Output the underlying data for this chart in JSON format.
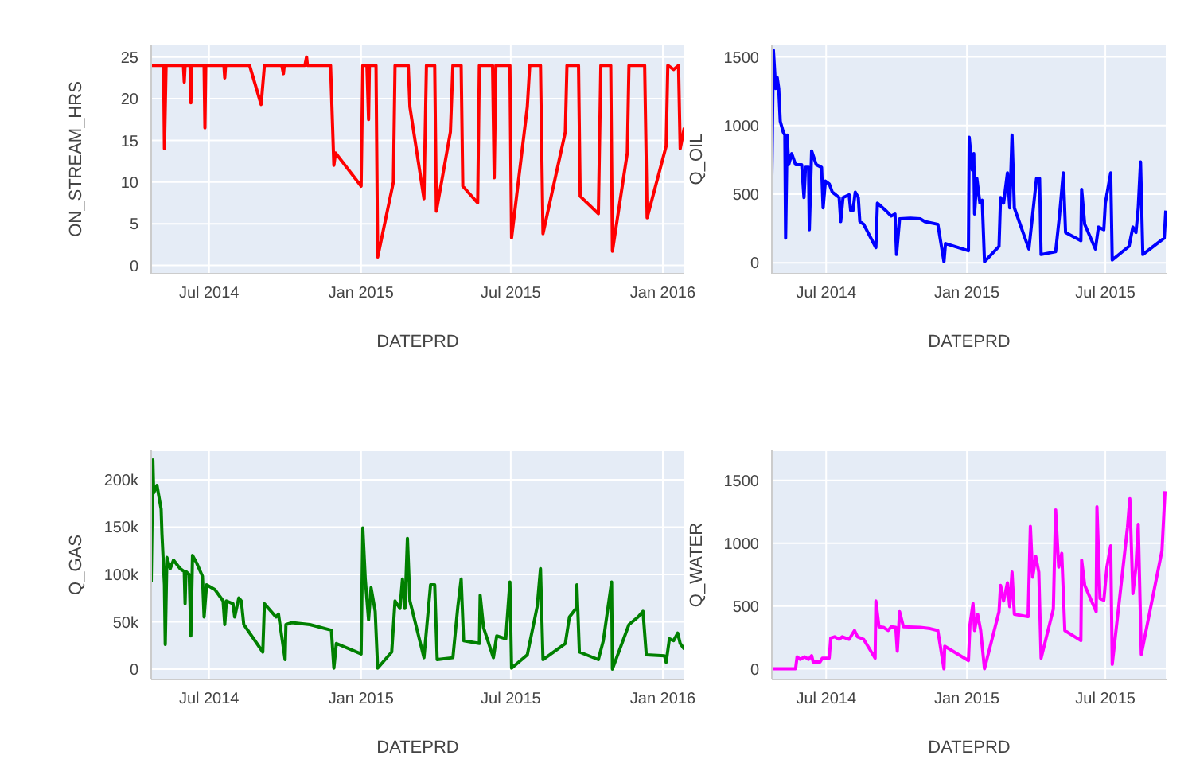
{
  "chart_data": [
    {
      "type": "line",
      "xlabel": "DATEPRD",
      "ylabel": "ON_STREAM_HRS",
      "color": "#ff0000",
      "grid": true,
      "xlim": [
        "2014-04-22",
        "2016-01-27"
      ],
      "xticks": [
        {
          "value": "2014-07-01",
          "label": "Jul 2014"
        },
        {
          "value": "2015-01-01",
          "label": "Jan 2015"
        },
        {
          "value": "2015-07-01",
          "label": "Jul 2015"
        },
        {
          "value": "2016-01-01",
          "label": "Jan 2016"
        }
      ],
      "ylim": [
        -1,
        26.5
      ],
      "yticks": [
        0,
        5,
        10,
        15,
        20,
        25
      ],
      "x": [
        "2014-04-22",
        "2014-05-07",
        "2014-05-08",
        "2014-05-10",
        "2014-05-31",
        "2014-06-01",
        "2014-06-02",
        "2014-06-08",
        "2014-06-09",
        "2014-06-10",
        "2014-06-25",
        "2014-06-26",
        "2014-06-27",
        "2014-07-19",
        "2014-07-20",
        "2014-07-21",
        "2014-08-19",
        "2014-09-02",
        "2014-09-06",
        "2014-09-27",
        "2014-09-29",
        "2014-09-30",
        "2014-10-25",
        "2014-10-27",
        "2014-10-28",
        "2014-11-25",
        "2014-11-29",
        "2014-12-01",
        "2015-01-01",
        "2015-01-03",
        "2015-01-08",
        "2015-01-10",
        "2015-01-11",
        "2015-01-19",
        "2015-01-21",
        "2015-02-09",
        "2015-02-11",
        "2015-02-27",
        "2015-03-01",
        "2015-03-18",
        "2015-03-21",
        "2015-03-31",
        "2015-04-02",
        "2015-04-19",
        "2015-04-22",
        "2015-05-02",
        "2015-05-04",
        "2015-05-22",
        "2015-05-24",
        "2015-06-09",
        "2015-06-11",
        "2015-06-13",
        "2015-06-30",
        "2015-07-02",
        "2015-07-21",
        "2015-07-24",
        "2015-08-06",
        "2015-08-09",
        "2015-09-05",
        "2015-09-07",
        "2015-09-21",
        "2015-09-23",
        "2015-10-15",
        "2015-10-18",
        "2015-10-30",
        "2015-11-01",
        "2015-11-19",
        "2015-11-21",
        "2015-12-10",
        "2015-12-13",
        "2016-01-05",
        "2016-01-07",
        "2016-01-14",
        "2016-01-20",
        "2016-01-22",
        "2016-01-27"
      ],
      "values": [
        24,
        24,
        14,
        24,
        24,
        22,
        24,
        24,
        19.5,
        24,
        24,
        16.5,
        24,
        24,
        22.5,
        24,
        24,
        19.3,
        24,
        24,
        23,
        24,
        24,
        25,
        24,
        24,
        12,
        13.5,
        9.5,
        24,
        24,
        17.5,
        24,
        24,
        1,
        10,
        24,
        24,
        19,
        8,
        24,
        24,
        6.5,
        16,
        24,
        24,
        9.5,
        7.5,
        24,
        24,
        10.5,
        24,
        24,
        3.3,
        19,
        24,
        24,
        3.8,
        16,
        24,
        24,
        8.3,
        6.2,
        24,
        24,
        1.7,
        13.5,
        24,
        24,
        5.7,
        14.3,
        24,
        23.5,
        24,
        14,
        16.5
      ]
    },
    {
      "type": "line",
      "xlabel": "DATEPRD",
      "ylabel": "Q_OIL",
      "color": "#0000ff",
      "grid": true,
      "xlim": [
        "2014-04-21",
        "2015-09-19"
      ],
      "xticks": [
        {
          "value": "2014-07-01",
          "label": "Jul 2014"
        },
        {
          "value": "2015-01-01",
          "label": "Jan 2015"
        },
        {
          "value": "2015-07-01",
          "label": "Jul 2015"
        }
      ],
      "ylim": [
        -80,
        1590
      ],
      "yticks": [
        0,
        500,
        1000,
        1500
      ],
      "x": [
        "2014-04-21",
        "2014-04-23",
        "2014-04-26",
        "2014-04-28",
        "2014-04-30",
        "2014-05-02",
        "2014-05-06",
        "2014-05-08",
        "2014-05-09",
        "2014-05-11",
        "2014-05-13",
        "2014-05-17",
        "2014-05-22",
        "2014-05-30",
        "2014-06-02",
        "2014-06-04",
        "2014-06-08",
        "2014-06-09",
        "2014-06-12",
        "2014-06-18",
        "2014-06-25",
        "2014-06-27",
        "2014-06-30",
        "2014-07-05",
        "2014-07-09",
        "2014-07-18",
        "2014-07-20",
        "2014-07-23",
        "2014-07-31",
        "2014-08-02",
        "2014-08-05",
        "2014-08-08",
        "2014-08-12",
        "2014-08-14",
        "2014-08-19",
        "2014-09-04",
        "2014-09-06",
        "2014-09-17",
        "2014-09-24",
        "2014-09-29",
        "2014-10-01",
        "2014-10-05",
        "2014-10-19",
        "2014-11-01",
        "2014-11-07",
        "2014-11-24",
        "2014-12-02",
        "2014-12-04",
        "2015-01-03",
        "2015-01-04",
        "2015-01-08",
        "2015-01-10",
        "2015-01-11",
        "2015-01-14",
        "2015-01-18",
        "2015-01-21",
        "2015-01-24",
        "2015-02-12",
        "2015-02-14",
        "2015-02-18",
        "2015-02-23",
        "2015-02-26",
        "2015-03-01",
        "2015-03-04",
        "2015-03-23",
        "2015-03-28",
        "2015-04-02",
        "2015-04-06",
        "2015-04-08",
        "2015-04-27",
        "2015-05-02",
        "2015-05-07",
        "2015-05-10",
        "2015-05-30",
        "2015-05-31",
        "2015-06-04",
        "2015-06-18",
        "2015-06-22",
        "2015-06-29",
        "2015-07-01",
        "2015-07-08",
        "2015-07-10",
        "2015-08-01",
        "2015-08-06",
        "2015-08-10",
        "2015-08-13",
        "2015-08-16",
        "2015-08-19",
        "2015-09-16",
        "2015-09-18"
      ],
      "values": [
        635,
        1550,
        1270,
        1350,
        1270,
        1030,
        950,
        930,
        180,
        930,
        715,
        795,
        715,
        715,
        475,
        695,
        695,
        240,
        815,
        715,
        695,
        400,
        595,
        575,
        515,
        475,
        300,
        475,
        495,
        380,
        380,
        515,
        475,
        300,
        280,
        110,
        435,
        380,
        340,
        355,
        60,
        320,
        325,
        320,
        300,
        280,
        8,
        140,
        87,
        915,
        675,
        795,
        355,
        615,
        435,
        455,
        8,
        120,
        475,
        435,
        655,
        400,
        930,
        400,
        100,
        355,
        615,
        615,
        60,
        80,
        340,
        655,
        220,
        160,
        535,
        280,
        100,
        260,
        240,
        435,
        655,
        20,
        120,
        260,
        220,
        400,
        735,
        60,
        180,
        380
      ]
    },
    {
      "type": "line",
      "xlabel": "DATEPRD",
      "ylabel": "Q_GAS",
      "color": "#008000",
      "grid": true,
      "xlim": [
        "2014-04-22",
        "2016-01-27"
      ],
      "xticks": [
        {
          "value": "2014-07-01",
          "label": "Jul 2014"
        },
        {
          "value": "2015-01-01",
          "label": "Jan 2015"
        },
        {
          "value": "2015-07-01",
          "label": "Jul 2015"
        },
        {
          "value": "2016-01-01",
          "label": "Jan 2016"
        }
      ],
      "ylim": [
        -11000,
        231000
      ],
      "yticks": [
        0,
        {
          "value": 50000,
          "label": "50k"
        },
        {
          "value": 100000,
          "label": "100k"
        },
        {
          "value": 150000,
          "label": "150k"
        },
        {
          "value": 200000,
          "label": "200k"
        }
      ],
      "x": [
        "2014-04-22",
        "2014-04-24",
        "2014-04-25",
        "2014-04-29",
        "2014-05-04",
        "2014-05-05",
        "2014-05-08",
        "2014-05-09",
        "2014-05-11",
        "2014-05-15",
        "2014-05-19",
        "2014-05-27",
        "2014-06-01",
        "2014-06-02",
        "2014-06-03",
        "2014-06-07",
        "2014-06-09",
        "2014-06-11",
        "2014-06-16",
        "2014-06-23",
        "2014-06-25",
        "2014-06-28",
        "2014-07-08",
        "2014-07-18",
        "2014-07-20",
        "2014-07-22",
        "2014-07-30",
        "2014-08-01",
        "2014-08-06",
        "2014-08-09",
        "2014-08-12",
        "2014-09-04",
        "2014-09-06",
        "2014-09-20",
        "2014-09-23",
        "2014-10-01",
        "2014-10-02",
        "2014-10-09",
        "2014-10-31",
        "2014-11-26",
        "2014-11-29",
        "2014-12-02",
        "2015-01-01",
        "2015-01-03",
        "2015-01-06",
        "2015-01-10",
        "2015-01-13",
        "2015-01-18",
        "2015-01-21",
        "2015-02-07",
        "2015-02-11",
        "2015-02-17",
        "2015-02-20",
        "2015-02-23",
        "2015-02-26",
        "2015-03-01",
        "2015-03-18",
        "2015-03-26",
        "2015-03-31",
        "2015-04-03",
        "2015-04-22",
        "2015-04-28",
        "2015-05-02",
        "2015-05-05",
        "2015-05-24",
        "2015-05-25",
        "2015-05-29",
        "2015-06-10",
        "2015-06-14",
        "2015-06-25",
        "2015-06-30",
        "2015-07-02",
        "2015-07-21",
        "2015-08-02",
        "2015-08-06",
        "2015-08-09",
        "2015-09-05",
        "2015-09-10",
        "2015-09-18",
        "2015-09-19",
        "2015-09-22",
        "2015-10-15",
        "2015-10-21",
        "2015-10-31",
        "2015-11-01",
        "2015-11-21",
        "2015-12-02",
        "2015-12-08",
        "2015-12-12",
        "2016-01-03",
        "2016-01-05",
        "2016-01-09",
        "2016-01-14",
        "2016-01-19",
        "2016-01-22",
        "2016-01-27"
      ],
      "values": [
        92000,
        221000,
        186000,
        194000,
        169000,
        143000,
        89000,
        26000,
        118000,
        106000,
        115000,
        106000,
        103000,
        69000,
        103000,
        100000,
        35000,
        120000,
        112000,
        98000,
        55000,
        89000,
        84000,
        72000,
        47000,
        72000,
        69000,
        55000,
        75000,
        72000,
        47000,
        18000,
        69000,
        55000,
        58000,
        10000,
        47000,
        49000,
        47000,
        41000,
        1000,
        27000,
        16000,
        149000,
        95000,
        52000,
        86000,
        61000,
        1000,
        18000,
        72000,
        64000,
        95000,
        64000,
        138000,
        72000,
        12000,
        89000,
        89000,
        10000,
        12000,
        66000,
        95000,
        30000,
        27000,
        78000,
        44000,
        12000,
        35000,
        32000,
        92000,
        1000,
        15000,
        66000,
        106000,
        10000,
        27000,
        55000,
        64000,
        89000,
        18000,
        10000,
        30000,
        92000,
        0,
        47000,
        55000,
        61000,
        15000,
        14000,
        7000,
        32000,
        30000,
        38000,
        27000,
        21000
      ]
    },
    {
      "type": "line",
      "xlabel": "DATEPRD",
      "ylabel": "Q_WATER",
      "color": "#ff00ff",
      "grid": true,
      "xlim": [
        "2014-04-21",
        "2015-09-19"
      ],
      "xticks": [
        {
          "value": "2014-07-01",
          "label": "Jul 2014"
        },
        {
          "value": "2015-01-01",
          "label": "Jan 2015"
        },
        {
          "value": "2015-07-01",
          "label": "Jul 2015"
        }
      ],
      "ylim": [
        -85,
        1740
      ],
      "yticks": [
        0,
        500,
        1000,
        1500
      ],
      "x": [
        "2014-04-21",
        "2014-05-22",
        "2014-05-24",
        "2014-05-28",
        "2014-06-03",
        "2014-06-08",
        "2014-06-12",
        "2014-06-14",
        "2014-06-23",
        "2014-06-26",
        "2014-07-05",
        "2014-07-07",
        "2014-07-12",
        "2014-07-18",
        "2014-07-22",
        "2014-07-31",
        "2014-08-07",
        "2014-08-11",
        "2014-08-19",
        "2014-09-03",
        "2014-09-04",
        "2014-09-08",
        "2014-09-14",
        "2014-09-20",
        "2014-09-24",
        "2014-09-30",
        "2014-10-02",
        "2014-10-05",
        "2014-10-10",
        "2014-11-01",
        "2014-11-14",
        "2014-11-24",
        "2014-12-02",
        "2014-12-03",
        "2015-01-03",
        "2015-01-05",
        "2015-01-09",
        "2015-01-11",
        "2015-01-15",
        "2015-01-19",
        "2015-01-24",
        "2015-02-12",
        "2015-02-14",
        "2015-02-18",
        "2015-02-23",
        "2015-02-26",
        "2015-03-01",
        "2015-03-04",
        "2015-03-22",
        "2015-03-25",
        "2015-03-28",
        "2015-04-01",
        "2015-04-05",
        "2015-04-08",
        "2015-04-24",
        "2015-04-27",
        "2015-05-01",
        "2015-05-05",
        "2015-05-09",
        "2015-05-30",
        "2015-05-31",
        "2015-06-04",
        "2015-06-19",
        "2015-06-20",
        "2015-06-24",
        "2015-06-29",
        "2015-07-03",
        "2015-07-08",
        "2015-07-10",
        "2015-07-30",
        "2015-08-02",
        "2015-08-06",
        "2015-08-10",
        "2015-08-13",
        "2015-08-17",
        "2015-09-13",
        "2015-09-17"
      ],
      "values": [
        0,
        0,
        95,
        75,
        95,
        75,
        105,
        55,
        55,
        85,
        85,
        245,
        255,
        235,
        255,
        235,
        305,
        255,
        235,
        85,
        540,
        335,
        330,
        305,
        335,
        330,
        140,
        455,
        335,
        330,
        320,
        305,
        0,
        180,
        65,
        350,
        520,
        305,
        435,
        305,
        0,
        455,
        665,
        540,
        685,
        495,
        770,
        435,
        415,
        1135,
        730,
        895,
        770,
        85,
        475,
        1265,
        810,
        920,
        305,
        225,
        865,
        665,
        455,
        1290,
        560,
        545,
        810,
        980,
        35,
        1130,
        1355,
        600,
        810,
        1150,
        115,
        940,
        1415
      ]
    }
  ]
}
